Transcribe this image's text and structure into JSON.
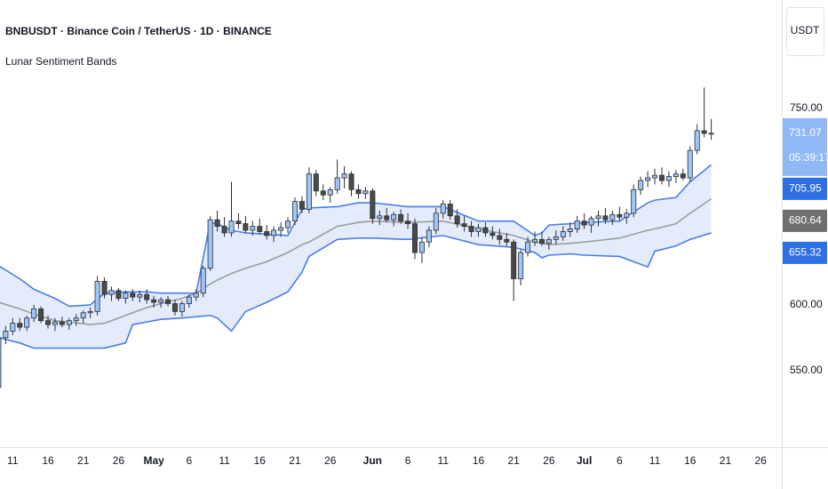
{
  "header": {
    "symbol": "BNBUSDT · Binance Coin / TetherUS · 1D · BINANCE",
    "indicator": "Lunar Sentiment Bands",
    "currency": "USDT"
  },
  "chart_data": {
    "type": "candlestick",
    "xlim": [
      9.2,
      120
    ],
    "ylim": [
      500.2,
      832.8
    ],
    "yticks": [
      550,
      600,
      750
    ],
    "yticks_labels": [
      "550.00",
      "600.00",
      "750.00"
    ],
    "xticks": [
      11,
      16,
      21,
      26,
      {
        "value": 31,
        "label": "May"
      },
      {
        "value": 36,
        "label": "6"
      },
      {
        "value": 41,
        "label": "11"
      },
      {
        "value": 46,
        "label": "16"
      },
      {
        "value": 51,
        "label": "21"
      },
      {
        "value": 56,
        "label": "26"
      },
      {
        "value": 62,
        "label": "Jun"
      },
      {
        "value": 67,
        "label": "6"
      },
      {
        "value": 72,
        "label": "11"
      },
      {
        "value": 77,
        "label": "16"
      },
      {
        "value": 82,
        "label": "21"
      },
      {
        "value": 87,
        "label": "26"
      },
      {
        "value": 92,
        "label": "Jul"
      },
      {
        "value": 97,
        "label": "6"
      },
      {
        "value": 102,
        "label": "11"
      },
      {
        "value": 107,
        "label": "16"
      },
      {
        "value": 112,
        "label": "21"
      },
      {
        "value": 117,
        "label": "26"
      }
    ],
    "up_color": "#9fc4f6",
    "down_color": "#4a4a4a",
    "wick_color": "#2a2e39",
    "x": [
      9,
      10,
      11,
      12,
      13,
      14,
      15,
      16,
      17,
      18,
      19,
      20,
      21,
      22,
      23,
      24,
      25,
      26,
      27,
      28,
      29,
      30,
      31,
      32,
      33,
      34,
      35,
      36,
      37,
      38,
      39,
      40,
      41,
      42,
      43,
      44,
      45,
      46,
      47,
      48,
      49,
      50,
      51,
      52,
      53,
      54,
      55,
      56,
      57,
      58,
      59,
      60,
      61,
      62,
      63,
      64,
      65,
      66,
      67,
      68,
      69,
      70,
      71,
      72,
      73,
      74,
      75,
      76,
      77,
      78,
      79,
      80,
      81,
      82,
      83,
      84,
      85,
      86,
      87,
      88,
      89,
      90,
      91,
      92,
      93,
      94,
      95,
      96,
      97,
      98,
      99,
      100,
      101,
      102,
      103,
      104,
      105,
      106,
      107,
      108,
      109,
      110
    ],
    "open": [
      537,
      575,
      580,
      586,
      583,
      590,
      597,
      588,
      585,
      587,
      585,
      588,
      590,
      594,
      595,
      618,
      608,
      611,
      605,
      609,
      606,
      608,
      604,
      602,
      604,
      601,
      595,
      601,
      606,
      609,
      628,
      665,
      660,
      655,
      664,
      662,
      657,
      660,
      656,
      653,
      657,
      659,
      664,
      679,
      673,
      700,
      687,
      684,
      688,
      697,
      700,
      688,
      685,
      687,
      666,
      668,
      665,
      669,
      664,
      662,
      640,
      648,
      657,
      670,
      677,
      668,
      662,
      660,
      656,
      659,
      655,
      653,
      650,
      648,
      620,
      640,
      648,
      650,
      647,
      650,
      652,
      656,
      658,
      664,
      661,
      666,
      668,
      665,
      669,
      667,
      670,
      688,
      695,
      697,
      699,
      695,
      698,
      700,
      697,
      718,
      733,
      731
    ],
    "high": [
      580,
      584,
      590,
      590,
      592,
      600,
      599,
      592,
      590,
      591,
      590,
      593,
      596,
      598,
      622,
      621,
      614,
      613,
      611,
      612,
      611,
      612,
      607,
      606,
      607,
      604,
      603,
      608,
      612,
      630,
      668,
      672,
      667,
      694,
      670,
      668,
      664,
      666,
      661,
      660,
      663,
      667,
      682,
      683,
      705,
      703,
      692,
      690,
      711,
      706,
      702,
      692,
      690,
      689,
      672,
      674,
      671,
      673,
      670,
      666,
      652,
      660,
      674,
      680,
      680,
      673,
      668,
      664,
      662,
      663,
      660,
      658,
      655,
      650,
      642,
      652,
      656,
      656,
      652,
      657,
      660,
      663,
      668,
      670,
      668,
      672,
      674,
      672,
      675,
      673,
      692,
      698,
      702,
      704,
      705,
      702,
      703,
      704,
      721,
      738,
      766,
      742
    ],
    "low": [
      530,
      570,
      577,
      580,
      580,
      587,
      586,
      582,
      580,
      583,
      581,
      584,
      586,
      590,
      592,
      605,
      603,
      603,
      601,
      603,
      602,
      601,
      598,
      598,
      599,
      592,
      591,
      598,
      603,
      606,
      626,
      656,
      652,
      652,
      658,
      655,
      653,
      654,
      650,
      648,
      652,
      655,
      661,
      670,
      670,
      683,
      680,
      678,
      685,
      689,
      683,
      681,
      681,
      662,
      661,
      663,
      660,
      662,
      658,
      635,
      632,
      644,
      654,
      666,
      665,
      659,
      656,
      652,
      652,
      652,
      650,
      646,
      645,
      603,
      615,
      637,
      645,
      645,
      642,
      646,
      649,
      652,
      655,
      658,
      655,
      660,
      662,
      661,
      664,
      662,
      667,
      684,
      690,
      692,
      692,
      690,
      693,
      695,
      694,
      715,
      728,
      726
    ],
    "close": [
      575,
      580,
      586,
      583,
      590,
      597,
      588,
      585,
      587,
      585,
      588,
      590,
      594,
      595,
      618,
      608,
      611,
      605,
      609,
      606,
      608,
      604,
      602,
      604,
      601,
      595,
      601,
      606,
      609,
      628,
      665,
      660,
      655,
      664,
      662,
      657,
      660,
      656,
      653,
      657,
      659,
      664,
      679,
      673,
      700,
      687,
      684,
      688,
      697,
      700,
      688,
      685,
      687,
      666,
      668,
      665,
      669,
      664,
      662,
      640,
      648,
      657,
      670,
      677,
      668,
      662,
      660,
      656,
      659,
      655,
      653,
      650,
      648,
      620,
      640,
      648,
      650,
      647,
      650,
      652,
      656,
      658,
      664,
      661,
      666,
      668,
      665,
      669,
      667,
      670,
      688,
      695,
      697,
      699,
      695,
      698,
      700,
      697,
      718,
      733,
      731,
      731.07
    ],
    "bands": {
      "x": [
        9,
        12,
        14,
        17,
        19,
        22,
        24,
        27,
        28,
        30,
        32,
        35,
        37,
        39,
        40,
        42,
        44,
        47,
        50,
        52,
        53,
        57,
        60,
        62,
        67,
        72,
        77,
        82,
        85,
        86,
        87,
        90,
        92,
        97,
        101,
        102,
        105,
        107,
        110
      ],
      "upper": [
        630,
        620,
        612,
        605,
        599,
        600,
        609,
        610,
        610,
        610,
        609,
        609,
        609,
        663,
        662,
        657,
        655,
        654,
        653,
        673,
        674,
        675,
        678,
        678,
        675,
        675,
        664,
        664,
        653,
        655,
        661,
        662,
        663,
        664,
        678,
        680,
        682,
        694,
        707
      ],
      "basis": [
        602,
        597,
        593,
        588,
        587,
        585,
        586,
        592,
        594,
        598,
        601,
        605,
        609,
        616,
        619,
        624,
        628,
        633,
        640,
        646,
        648,
        660,
        663,
        664,
        663,
        664,
        658,
        653,
        648,
        647,
        646,
        647,
        648,
        651,
        657,
        658,
        662,
        670,
        681
      ],
      "lower": [
        575,
        571,
        567,
        567,
        567,
        567,
        567,
        571,
        585,
        587,
        589,
        590,
        591,
        592,
        590,
        580,
        595,
        602,
        610,
        625,
        637,
        650,
        651,
        651,
        650,
        653,
        646,
        644,
        640,
        636,
        638,
        639,
        638,
        637,
        629,
        641,
        645,
        650,
        655
      ],
      "band_color": "#4a7de8",
      "basis_color": "#9c9c9c",
      "fill_color": "#e4ecfb"
    },
    "price_labels": [
      {
        "value": 731.07,
        "label": "731.07",
        "countdown": "05:39:17",
        "color": "#8fb8f5"
      },
      {
        "value": 705.95,
        "label": "705.95",
        "color": "#2f6fe6"
      },
      {
        "value": 680.64,
        "label": "680.64",
        "color": "#6f6f6f"
      },
      {
        "value": 655.32,
        "label": "655.32",
        "color": "#2f6fe6"
      }
    ]
  }
}
